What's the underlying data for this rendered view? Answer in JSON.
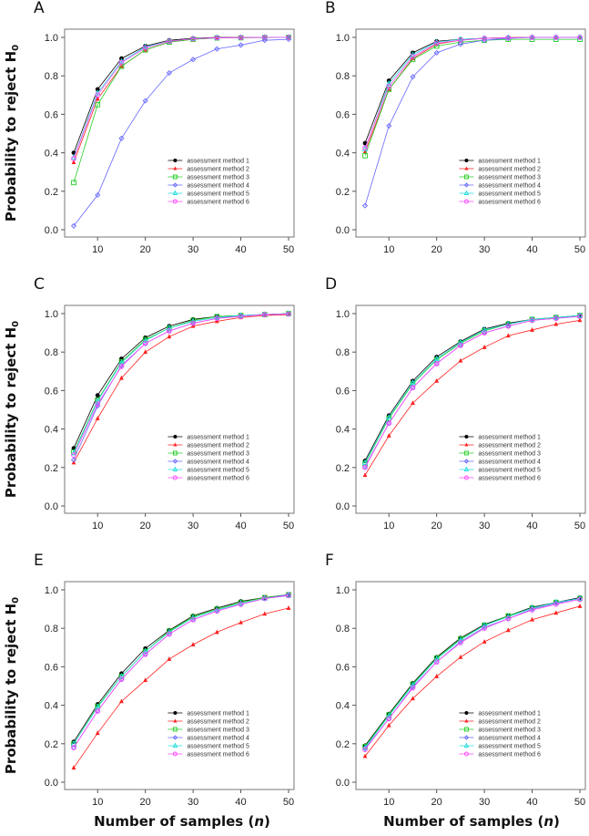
{
  "chart_data": {
    "type": "line",
    "ylabel": "Probability to reject H",
    "ylabel_subscript": "0",
    "xlabel": "Number of samples (",
    "xlabel_var": "n",
    "xlabel_close": ")",
    "x": [
      5,
      10,
      15,
      20,
      25,
      30,
      35,
      40,
      45,
      50
    ],
    "xticks": [
      "10",
      "20",
      "30",
      "40",
      "50"
    ],
    "xtick_values": [
      10,
      20,
      30,
      40,
      50
    ],
    "yticks": [
      "0.0",
      "0.2",
      "0.4",
      "0.6",
      "0.8",
      "1.0"
    ],
    "ytick_values": [
      0,
      0.2,
      0.4,
      0.6,
      0.8,
      1.0
    ],
    "ylim": [
      0,
      1
    ],
    "xlim": [
      5,
      50
    ],
    "legend_placement": "bottom-right",
    "legend": [
      "assessment method 1",
      "assessment method 2",
      "assessment method 3",
      "assessment method 4",
      "assessment method 5",
      "assessment method 6"
    ],
    "series_styles": [
      {
        "color": "#000000",
        "marker": "filled-circle"
      },
      {
        "color": "#ff2020",
        "marker": "filled-triangle"
      },
      {
        "color": "#22cc22",
        "marker": "open-square"
      },
      {
        "color": "#6666ff",
        "marker": "open-diamond"
      },
      {
        "color": "#22dddd",
        "marker": "open-triangle"
      },
      {
        "color": "#ff44ff",
        "marker": "open-circle"
      }
    ],
    "panels": [
      {
        "label": "A",
        "series": [
          [
            0.4,
            0.73,
            0.89,
            0.955,
            0.985,
            0.995,
            1,
            1,
            1,
            1
          ],
          [
            0.35,
            0.68,
            0.85,
            0.935,
            0.975,
            0.99,
            0.998,
            1,
            1,
            1
          ],
          [
            0.245,
            0.65,
            0.85,
            0.935,
            0.975,
            0.99,
            0.997,
            0.998,
            0.999,
            1
          ],
          [
            0.02,
            0.18,
            0.475,
            0.67,
            0.815,
            0.885,
            0.94,
            0.96,
            0.985,
            0.99
          ],
          [
            0.375,
            0.71,
            0.875,
            0.95,
            0.98,
            0.993,
            0.998,
            0.999,
            1,
            1
          ],
          [
            0.37,
            0.7,
            0.87,
            0.945,
            0.98,
            0.993,
            0.998,
            0.999,
            1,
            1
          ]
        ]
      },
      {
        "label": "B",
        "series": [
          [
            0.45,
            0.775,
            0.92,
            0.98,
            0.99,
            0.995,
            0.998,
            1,
            1,
            1
          ],
          [
            0.405,
            0.73,
            0.89,
            0.965,
            0.985,
            0.995,
            1,
            1,
            1,
            1
          ],
          [
            0.385,
            0.73,
            0.885,
            0.955,
            0.975,
            0.985,
            0.99,
            0.99,
            0.99,
            0.99
          ],
          [
            0.125,
            0.54,
            0.795,
            0.92,
            0.965,
            0.985,
            0.995,
            1,
            1,
            1
          ],
          [
            0.42,
            0.76,
            0.91,
            0.975,
            0.99,
            0.995,
            0.998,
            0.999,
            1,
            1
          ],
          [
            0.425,
            0.745,
            0.9,
            0.97,
            0.985,
            0.995,
            0.998,
            1,
            1,
            1
          ]
        ]
      },
      {
        "label": "C",
        "series": [
          [
            0.3,
            0.575,
            0.765,
            0.875,
            0.935,
            0.97,
            0.985,
            0.99,
            0.995,
            1
          ],
          [
            0.225,
            0.455,
            0.665,
            0.8,
            0.88,
            0.935,
            0.96,
            0.98,
            0.99,
            0.995
          ],
          [
            0.28,
            0.55,
            0.75,
            0.865,
            0.925,
            0.965,
            0.985,
            0.99,
            0.995,
            1
          ],
          [
            0.24,
            0.52,
            0.73,
            0.845,
            0.91,
            0.95,
            0.975,
            0.99,
            0.995,
            0.998
          ],
          [
            0.275,
            0.545,
            0.745,
            0.86,
            0.925,
            0.96,
            0.98,
            0.99,
            0.995,
            1
          ],
          [
            0.265,
            0.53,
            0.725,
            0.845,
            0.91,
            0.95,
            0.975,
            0.985,
            0.995,
            0.998
          ]
        ]
      },
      {
        "label": "D",
        "series": [
          [
            0.235,
            0.47,
            0.65,
            0.775,
            0.855,
            0.92,
            0.95,
            0.97,
            0.98,
            0.99
          ],
          [
            0.16,
            0.365,
            0.535,
            0.65,
            0.755,
            0.825,
            0.885,
            0.915,
            0.945,
            0.965
          ],
          [
            0.22,
            0.455,
            0.635,
            0.76,
            0.845,
            0.91,
            0.945,
            0.97,
            0.98,
            0.99
          ],
          [
            0.205,
            0.43,
            0.615,
            0.74,
            0.835,
            0.9,
            0.935,
            0.965,
            0.975,
            0.99
          ],
          [
            0.225,
            0.46,
            0.64,
            0.765,
            0.85,
            0.915,
            0.945,
            0.97,
            0.98,
            0.99
          ],
          [
            0.2,
            0.43,
            0.615,
            0.74,
            0.835,
            0.9,
            0.935,
            0.965,
            0.975,
            0.985
          ]
        ]
      },
      {
        "label": "E",
        "series": [
          [
            0.21,
            0.405,
            0.565,
            0.695,
            0.79,
            0.865,
            0.905,
            0.94,
            0.96,
            0.975
          ],
          [
            0.075,
            0.255,
            0.42,
            0.53,
            0.64,
            0.715,
            0.78,
            0.83,
            0.875,
            0.905
          ],
          [
            0.2,
            0.395,
            0.55,
            0.68,
            0.785,
            0.86,
            0.9,
            0.935,
            0.96,
            0.975
          ],
          [
            0.18,
            0.37,
            0.535,
            0.665,
            0.77,
            0.845,
            0.89,
            0.925,
            0.955,
            0.975
          ],
          [
            0.2,
            0.39,
            0.55,
            0.68,
            0.78,
            0.855,
            0.895,
            0.93,
            0.955,
            0.97
          ],
          [
            0.18,
            0.37,
            0.535,
            0.665,
            0.77,
            0.845,
            0.89,
            0.925,
            0.955,
            0.97
          ]
        ]
      },
      {
        "label": "F",
        "series": [
          [
            0.19,
            0.355,
            0.515,
            0.65,
            0.75,
            0.82,
            0.865,
            0.91,
            0.935,
            0.96
          ],
          [
            0.135,
            0.295,
            0.435,
            0.55,
            0.65,
            0.73,
            0.79,
            0.845,
            0.88,
            0.915
          ],
          [
            0.185,
            0.35,
            0.51,
            0.645,
            0.745,
            0.815,
            0.865,
            0.905,
            0.935,
            0.955
          ],
          [
            0.175,
            0.33,
            0.495,
            0.625,
            0.73,
            0.805,
            0.85,
            0.9,
            0.93,
            0.955
          ],
          [
            0.18,
            0.345,
            0.505,
            0.64,
            0.74,
            0.815,
            0.86,
            0.905,
            0.935,
            0.955
          ],
          [
            0.17,
            0.33,
            0.49,
            0.625,
            0.725,
            0.8,
            0.85,
            0.895,
            0.925,
            0.95
          ]
        ]
      }
    ]
  }
}
